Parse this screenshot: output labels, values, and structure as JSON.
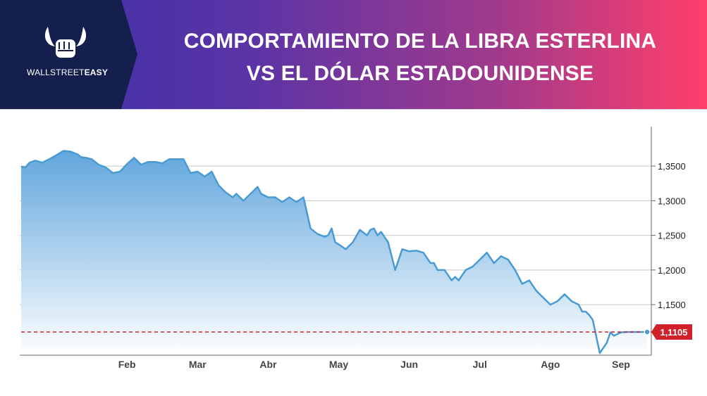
{
  "header": {
    "logo": {
      "text_light": "WALLSTREET",
      "text_bold": "EASY",
      "icon": "bull-fist-icon"
    },
    "title_line1": "COMPORTAMIENTO DE LA LIBRA ESTERLINA",
    "title_line2": "VS EL DÓLAR ESTADOUNIDENSE"
  },
  "colors": {
    "line": "#4a9ad4",
    "fill_top": "#5aa2db",
    "fill_bottom": "#ffffff",
    "reference": "#d0202a",
    "header_dark": "#141f4e"
  },
  "chart_data": {
    "type": "area",
    "title": "COMPORTAMIENTO DE LA LIBRA ESTERLINA VS EL DÓLAR ESTADOUNIDENSE",
    "xlabel": "",
    "ylabel": "",
    "x_ticks": [
      "Feb",
      "Mar",
      "Abr",
      "May",
      "Jun",
      "Jul",
      "Ago",
      "Sep"
    ],
    "y_ticks": [
      "1,3500",
      "1,3000",
      "1,2500",
      "1,2000",
      "1,1500"
    ],
    "y_tick_values": [
      1.35,
      1.3,
      1.25,
      1.2,
      1.15
    ],
    "ylim": [
      1.077,
      1.407
    ],
    "x_range": [
      0,
      8.87
    ],
    "grid": "horizontal",
    "reference_line": {
      "value": 1.1105,
      "label": "1,1105"
    },
    "series": [
      {
        "x": [
          0,
          0.06,
          0.12,
          0.2,
          0.3,
          0.4,
          0.5,
          0.6,
          0.7,
          0.8,
          0.85,
          0.92,
          1.0,
          1.1,
          1.2,
          1.3,
          1.4,
          1.5,
          1.6,
          1.7,
          1.75,
          1.8,
          1.9,
          2.0,
          2.1,
          2.2,
          2.3,
          2.4,
          2.5,
          2.6,
          2.7,
          2.8,
          2.9,
          3.0,
          3.05,
          3.15,
          3.3,
          3.35,
          3.4,
          3.5,
          3.6,
          3.7,
          3.8,
          3.9,
          4.0,
          4.1,
          4.2,
          4.25,
          4.3,
          4.35,
          4.4,
          4.45,
          4.5,
          4.6,
          4.7,
          4.8,
          4.9,
          4.95,
          5.0,
          5.05,
          5.1,
          5.2,
          5.3,
          5.4,
          5.5,
          5.6,
          5.7,
          5.8,
          5.85,
          5.9,
          6.0,
          6.1,
          6.15,
          6.2,
          6.3,
          6.4,
          6.5,
          6.6,
          6.7,
          6.8,
          6.9,
          7.0,
          7.1,
          7.2,
          7.3,
          7.4,
          7.5,
          7.6,
          7.7,
          7.8,
          7.9,
          7.95,
          8.0,
          8.05,
          8.1,
          8.2,
          8.3,
          8.35,
          8.4,
          8.5,
          8.6,
          8.7,
          8.75,
          8.8,
          8.87
        ],
        "values": [
          1.349,
          1.348,
          1.355,
          1.358,
          1.355,
          1.36,
          1.366,
          1.372,
          1.371,
          1.367,
          1.363,
          1.362,
          1.36,
          1.352,
          1.348,
          1.34,
          1.342,
          1.353,
          1.362,
          1.352,
          1.354,
          1.356,
          1.356,
          1.354,
          1.36,
          1.36,
          1.36,
          1.34,
          1.342,
          1.335,
          1.342,
          1.322,
          1.312,
          1.305,
          1.31,
          1.3,
          1.315,
          1.32,
          1.31,
          1.305,
          1.305,
          1.298,
          1.305,
          1.298,
          1.305,
          1.26,
          1.252,
          1.25,
          1.248,
          1.25,
          1.26,
          1.24,
          1.237,
          1.23,
          1.24,
          1.258,
          1.25,
          1.258,
          1.26,
          1.25,
          1.255,
          1.24,
          1.2,
          1.23,
          1.227,
          1.228,
          1.225,
          1.21,
          1.21,
          1.2,
          1.2,
          1.185,
          1.19,
          1.185,
          1.2,
          1.205,
          1.215,
          1.225,
          1.21,
          1.22,
          1.215,
          1.2,
          1.18,
          1.185,
          1.17,
          1.16,
          1.15,
          1.155,
          1.165,
          1.155,
          1.15,
          1.14,
          1.14,
          1.135,
          1.128,
          1.08,
          1.095,
          1.11,
          1.105,
          1.11,
          1.1105,
          1.1105,
          1.1105,
          1.1105,
          1.1105
        ]
      }
    ]
  }
}
